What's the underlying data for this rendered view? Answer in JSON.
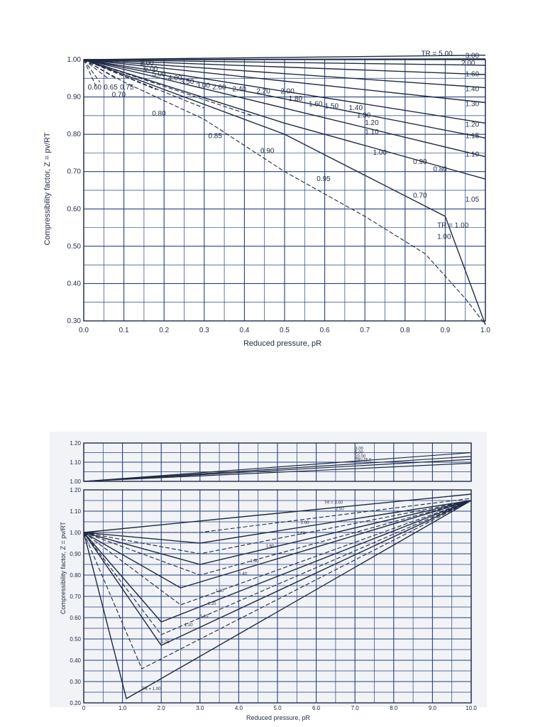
{
  "colors": {
    "ink": "#1f2a44",
    "grid": "#27407a",
    "paper": "#ffffff",
    "panel2_bg": "#f1f3f6"
  },
  "chart_data": [
    {
      "type": "line",
      "xlabel": "Reduced pressure, pR",
      "ylabel": "Compressibility factor, Z = pv/RT",
      "xlim": [
        0.0,
        1.0
      ],
      "ylim": [
        0.3,
        1.0
      ],
      "grid": true,
      "xticks": [
        "0.0",
        "0.1",
        "0.2",
        "0.3",
        "0.4",
        "0.5",
        "0.6",
        "0.7",
        "0.8",
        "0.9",
        "1.0"
      ],
      "yticks": [
        "0.30",
        "0.40",
        "0.50",
        "0.60",
        "0.70",
        "0.80",
        "0.90",
        "1.00"
      ],
      "curve_label_prefix": "TR = ",
      "series": [
        {
          "name": "5.00",
          "style": "solid",
          "x": [
            0,
            1.0
          ],
          "y": [
            1.0,
            1.012
          ]
        },
        {
          "name": "3.00",
          "style": "solid",
          "x": [
            0,
            1.0
          ],
          "y": [
            1.0,
            1.002
          ]
        },
        {
          "name": "2.00",
          "style": "solid",
          "x": [
            0,
            1.0
          ],
          "y": [
            1.0,
            0.985
          ]
        },
        {
          "name": "1.60",
          "style": "solid",
          "x": [
            0,
            1.0
          ],
          "y": [
            1.0,
            0.96
          ]
        },
        {
          "name": "1.40",
          "style": "solid",
          "x": [
            0,
            1.0
          ],
          "y": [
            1.0,
            0.925
          ]
        },
        {
          "name": "1.30",
          "style": "solid",
          "x": [
            0,
            1.0
          ],
          "y": [
            1.0,
            0.885
          ]
        },
        {
          "name": "1.20",
          "style": "solid",
          "x": [
            0,
            1.0
          ],
          "y": [
            1.0,
            0.83
          ]
        },
        {
          "name": "1.15",
          "style": "solid",
          "x": [
            0,
            1.0
          ],
          "y": [
            1.0,
            0.79
          ]
        },
        {
          "name": "1.10",
          "style": "solid",
          "x": [
            0,
            1.0
          ],
          "y": [
            1.0,
            0.74
          ]
        },
        {
          "name": "1.05",
          "style": "solid",
          "x": [
            0,
            0.5,
            1.0
          ],
          "y": [
            1.0,
            0.83,
            0.68
          ]
        },
        {
          "name": "1.00",
          "style": "solid",
          "x": [
            0,
            0.5,
            0.9,
            1.0
          ],
          "y": [
            1.0,
            0.8,
            0.58,
            0.29
          ]
        },
        {
          "name": "0.95",
          "style": "dashed",
          "x": [
            0,
            0.1,
            0.3,
            0.5,
            0.7,
            0.85,
            0.95,
            1.0
          ],
          "y": [
            1.0,
            0.94,
            0.84,
            0.7,
            0.58,
            0.48,
            0.36,
            0.29
          ]
        },
        {
          "name": "0.90",
          "style": "dashed",
          "x": [
            0,
            0.42
          ],
          "y": [
            1.0,
            0.85
          ]
        },
        {
          "name": "0.85",
          "style": "dashed",
          "x": [
            0,
            0.3
          ],
          "y": [
            1.0,
            0.87
          ]
        },
        {
          "name": "0.80",
          "style": "dashed",
          "x": [
            0,
            0.18
          ],
          "y": [
            1.0,
            0.92
          ]
        },
        {
          "name": "0.75",
          "style": "dashed",
          "x": [
            0,
            0.08
          ],
          "y": [
            1.0,
            0.95
          ]
        },
        {
          "name": "0.70",
          "style": "dashed",
          "x": [
            0,
            0.06
          ],
          "y": [
            1.0,
            0.95
          ]
        },
        {
          "name": "0.65",
          "style": "dashed",
          "x": [
            0,
            0.04
          ],
          "y": [
            1.0,
            0.94
          ]
        },
        {
          "name": "0.60",
          "style": "dashed",
          "x": [
            0,
            0.03
          ],
          "y": [
            1.0,
            0.93
          ]
        }
      ],
      "curve_labels": [
        {
          "text": "TR = 5.00",
          "x": 0.84,
          "y": 1.01
        },
        {
          "text": "3.00",
          "x": 0.95,
          "y": 1.005
        },
        {
          "text": "2.00",
          "x": 0.94,
          "y": 0.985
        },
        {
          "text": "1.60",
          "x": 0.95,
          "y": 0.955
        },
        {
          "text": "1.40",
          "x": 0.95,
          "y": 0.915
        },
        {
          "text": "1.30",
          "x": 0.95,
          "y": 0.875
        },
        {
          "text": "1.20",
          "x": 0.95,
          "y": 0.82
        },
        {
          "text": "1.15",
          "x": 0.95,
          "y": 0.79
        },
        {
          "text": "1.10",
          "x": 0.95,
          "y": 0.74
        },
        {
          "text": "1.05",
          "x": 0.95,
          "y": 0.62
        },
        {
          "text": "1.00",
          "x": 0.88,
          "y": 0.52
        },
        {
          "text": "0.80",
          "x": 0.87,
          "y": 0.7
        },
        {
          "text": "0.70",
          "x": 0.82,
          "y": 0.63
        },
        {
          "text": "0.90",
          "x": 0.82,
          "y": 0.72
        },
        {
          "text": "1.00",
          "x": 0.72,
          "y": 0.745
        },
        {
          "text": "1.10",
          "x": 0.7,
          "y": 0.8
        },
        {
          "text": "1.20",
          "x": 0.7,
          "y": 0.825
        },
        {
          "text": "1.30",
          "x": 0.68,
          "y": 0.845
        },
        {
          "text": "1.40",
          "x": 0.66,
          "y": 0.865
        },
        {
          "text": "1.50",
          "x": 0.6,
          "y": 0.87
        },
        {
          "text": "1.60",
          "x": 0.56,
          "y": 0.875
        },
        {
          "text": "1.80",
          "x": 0.51,
          "y": 0.89
        },
        {
          "text": "2.00",
          "x": 0.49,
          "y": 0.91
        },
        {
          "text": "2.20",
          "x": 0.43,
          "y": 0.91
        },
        {
          "text": "2.40",
          "x": 0.37,
          "y": 0.915
        },
        {
          "text": "2.60",
          "x": 0.32,
          "y": 0.92
        },
        {
          "text": "3.00",
          "x": 0.28,
          "y": 0.925
        },
        {
          "text": "3.50",
          "x": 0.24,
          "y": 0.935
        },
        {
          "text": "4.00",
          "x": 0.21,
          "y": 0.945
        },
        {
          "text": "5.00",
          "x": 0.17,
          "y": 0.955
        },
        {
          "text": "6.00",
          "x": 0.15,
          "y": 0.97
        },
        {
          "text": "8.00",
          "x": 0.14,
          "y": 0.985
        },
        {
          "text": "0.95",
          "x": 0.58,
          "y": 0.675
        },
        {
          "text": "0.90",
          "x": 0.44,
          "y": 0.75
        },
        {
          "text": "0.85",
          "x": 0.31,
          "y": 0.79
        },
        {
          "text": "0.80",
          "x": 0.17,
          "y": 0.85
        },
        {
          "text": "0.75",
          "x": 0.09,
          "y": 0.92
        },
        {
          "text": "0.70",
          "x": 0.07,
          "y": 0.9
        },
        {
          "text": "0.65",
          "x": 0.05,
          "y": 0.92
        },
        {
          "text": "0.60",
          "x": 0.01,
          "y": 0.92
        },
        {
          "text": "TR = 1.00",
          "x": 0.88,
          "y": 0.55
        }
      ]
    },
    {
      "type": "line",
      "xlabel": "Reduced pressure, pR",
      "ylabel": "Compressibility factor, Z = pv/RT",
      "xlim": [
        0,
        10.0
      ],
      "ylim": [
        0.2,
        1.2
      ],
      "grid": true,
      "xticks": [
        "0",
        "1.0",
        "2.0",
        "3.0",
        "4.0",
        "5.0",
        "6.0",
        "7.0",
        "8.0",
        "9.0",
        "10.0"
      ],
      "yticks": [
        "0.20",
        "0.30",
        "0.40",
        "0.50",
        "0.60",
        "0.70",
        "0.80",
        "0.90",
        "1.00",
        "1.10",
        "1.20"
      ],
      "inset": {
        "ylim": [
          1.0,
          1.2
        ],
        "yticks": [
          "1.00",
          "1.10",
          "1.20"
        ],
        "series": [
          {
            "name": "3.00",
            "x": [
              0,
              10
            ],
            "y": [
              1.0,
              1.15
            ]
          },
          {
            "name": "5.00",
            "x": [
              0,
              10
            ],
            "y": [
              1.0,
              1.13
            ]
          },
          {
            "name": "10.00",
            "x": [
              0,
              10
            ],
            "y": [
              1.0,
              1.115
            ]
          },
          {
            "name": "15.0",
            "x": [
              0,
              10
            ],
            "y": [
              1.0,
              1.095
            ]
          }
        ],
        "labels": [
          {
            "text": "3.00",
            "x": 7.0,
            "y": 1.165
          },
          {
            "text": "5.00",
            "x": 7.0,
            "y": 1.145
          },
          {
            "text": "10.00",
            "x": 7.0,
            "y": 1.125
          },
          {
            "text": "TR=15.0",
            "x": 7.0,
            "y": 1.105
          }
        ]
      },
      "series": [
        {
          "name": "3.50",
          "style": "solid",
          "x": [
            0,
            10
          ],
          "y": [
            1.0,
            1.18
          ]
        },
        {
          "name": "2.50",
          "style": "dashed",
          "x": [
            0,
            3,
            10
          ],
          "y": [
            1.0,
            1.0,
            1.16
          ]
        },
        {
          "name": "2.00",
          "style": "solid",
          "x": [
            0,
            3,
            10
          ],
          "y": [
            1.0,
            0.95,
            1.15
          ]
        },
        {
          "name": "1.80",
          "style": "dashed",
          "x": [
            0,
            3,
            10
          ],
          "y": [
            1.0,
            0.9,
            1.15
          ]
        },
        {
          "name": "1.60",
          "style": "solid",
          "x": [
            0,
            3,
            10
          ],
          "y": [
            1.0,
            0.85,
            1.15
          ]
        },
        {
          "name": "1.50",
          "style": "dashed",
          "x": [
            0,
            3,
            10
          ],
          "y": [
            1.0,
            0.8,
            1.15
          ]
        },
        {
          "name": "1.40",
          "style": "solid",
          "x": [
            0,
            2.5,
            10
          ],
          "y": [
            1.0,
            0.74,
            1.15
          ]
        },
        {
          "name": "1.30",
          "style": "dashed",
          "x": [
            0,
            2.5,
            10
          ],
          "y": [
            1.0,
            0.66,
            1.15
          ]
        },
        {
          "name": "1.20",
          "style": "solid",
          "x": [
            0,
            2,
            10
          ],
          "y": [
            1.0,
            0.58,
            1.15
          ]
        },
        {
          "name": "1.15",
          "style": "dashed",
          "x": [
            0,
            2,
            10
          ],
          "y": [
            1.0,
            0.52,
            1.15
          ]
        },
        {
          "name": "1.10",
          "style": "solid",
          "x": [
            0,
            2,
            10
          ],
          "y": [
            1.0,
            0.47,
            1.15
          ]
        },
        {
          "name": "1.05",
          "style": "dashed",
          "x": [
            0,
            1.5,
            10
          ],
          "y": [
            1.0,
            0.36,
            1.15
          ]
        },
        {
          "name": "1.00",
          "style": "solid",
          "x": [
            0,
            1.1,
            10
          ],
          "y": [
            1.0,
            0.22,
            1.15
          ]
        }
      ],
      "curve_labels": [
        {
          "text": "TR = 3.50",
          "x": 6.2,
          "y": 1.135
        },
        {
          "text": "2.50",
          "x": 6.5,
          "y": 1.105
        },
        {
          "text": "2.00",
          "x": 5.6,
          "y": 1.04
        },
        {
          "text": "1.80",
          "x": 5.5,
          "y": 0.99
        },
        {
          "text": "1.60",
          "x": 4.7,
          "y": 0.93
        },
        {
          "text": "1.50",
          "x": 4.3,
          "y": 0.86
        },
        {
          "text": "1.40",
          "x": 4.0,
          "y": 0.8
        },
        {
          "text": "1.30",
          "x": 3.4,
          "y": 0.72
        },
        {
          "text": "1.20",
          "x": 3.2,
          "y": 0.66
        },
        {
          "text": "1.15",
          "x": 3.0,
          "y": 0.6
        },
        {
          "text": "1.10",
          "x": 2.6,
          "y": 0.56
        },
        {
          "text": "1.05",
          "x": 2.0,
          "y": 0.48
        },
        {
          "text": "TR = 1.00",
          "x": 1.5,
          "y": 0.26
        }
      ]
    }
  ]
}
